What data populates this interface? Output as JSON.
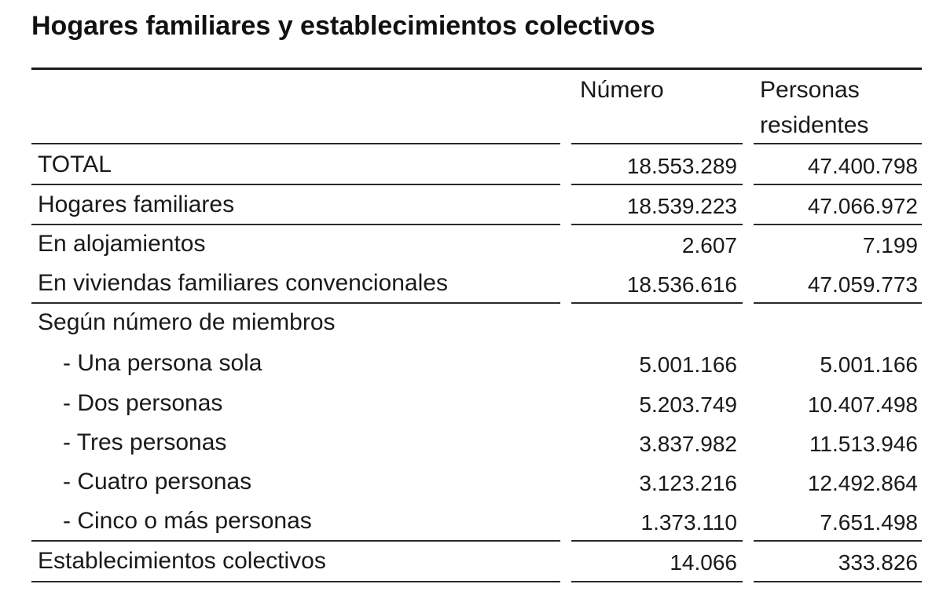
{
  "title": "Hogares familiares y establecimientos colectivos",
  "headers": {
    "numero": "Número",
    "personas_line1": "Personas",
    "personas_line2": "residentes"
  },
  "rows": [
    {
      "label": "TOTAL",
      "numero": "18.553.289",
      "personas": "47.400.798"
    },
    {
      "label": "Hogares familiares",
      "numero": "18.539.223",
      "personas": "47.066.972"
    },
    {
      "label": "En alojamientos",
      "numero": "2.607",
      "personas": "7.199"
    },
    {
      "label": "En viviendas familiares convencionales",
      "numero": "18.536.616",
      "personas": "47.059.773"
    },
    {
      "label": "Según número de miembros",
      "numero": "",
      "personas": ""
    },
    {
      "label": "- Una persona sola",
      "numero": "5.001.166",
      "personas": "5.001.166"
    },
    {
      "label": "- Dos personas",
      "numero": "5.203.749",
      "personas": "10.407.498"
    },
    {
      "label": "- Tres personas",
      "numero": "3.837.982",
      "personas": "11.513.946"
    },
    {
      "label": "- Cuatro personas",
      "numero": "3.123.216",
      "personas": "12.492.864"
    },
    {
      "label": "- Cinco o más personas",
      "numero": "1.373.110",
      "personas": "7.651.498"
    },
    {
      "label": "Establecimientos colectivos",
      "numero": "14.066",
      "personas": "333.826"
    }
  ]
}
